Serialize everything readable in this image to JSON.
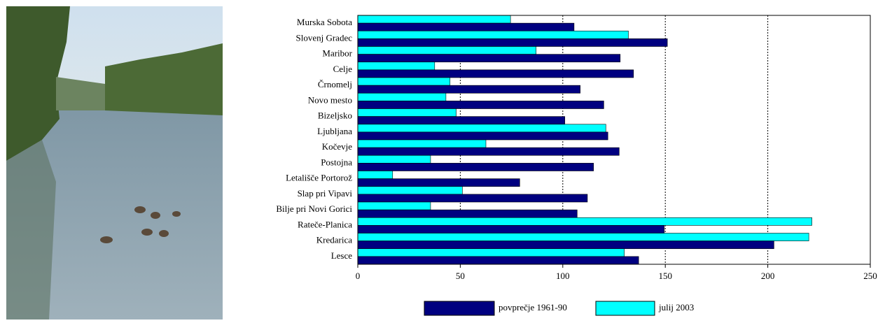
{
  "chart_data": {
    "type": "hbar",
    "categories": [
      "Murska Sobota",
      "Slovenj Gradec",
      "Maribor",
      "Celje",
      "Črnomelj",
      "Novo mesto",
      "Bizeljsko",
      "Ljubljana",
      "Kočevje",
      "Postojna",
      "Letališče Portorož",
      "Slap pri Vipavi",
      "Bilje pri Novi Gorici",
      "Rateče-Planica",
      "Kredarica",
      "Lesce"
    ],
    "series": [
      {
        "name": "povprečje 1961-90",
        "color": "#000080",
        "values": [
          105.5,
          151,
          128,
          134.5,
          108.5,
          120,
          101,
          122,
          127.5,
          115,
          79,
          112,
          107,
          149.5,
          203,
          137
        ]
      },
      {
        "name": "julij 2003",
        "color": "#00ffff",
        "values": [
          74.5,
          132,
          87,
          37.5,
          45,
          43,
          48,
          121,
          62.5,
          35.5,
          17,
          51,
          35.5,
          221.5,
          220,
          130
        ]
      }
    ],
    "xlim": [
      0,
      250
    ],
    "xticks": [
      0,
      50,
      100,
      150,
      200,
      250
    ],
    "grid": true
  }
}
